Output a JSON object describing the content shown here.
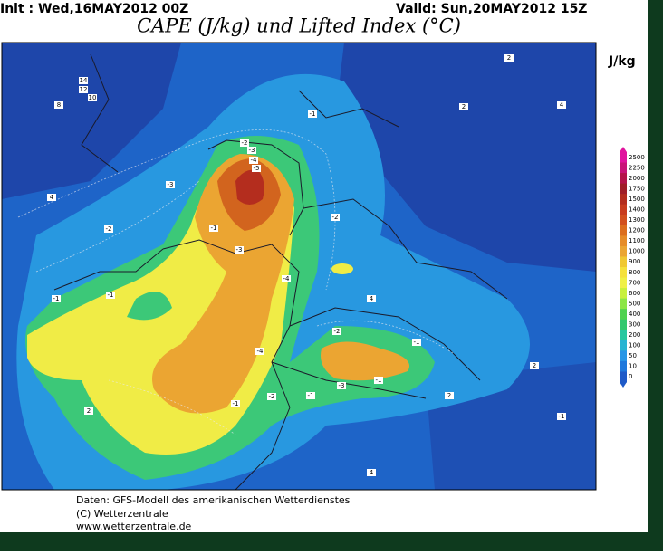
{
  "header": {
    "init": "Init : Wed,16MAY2012 00Z",
    "valid": "Valid: Sun,20MAY2012 15Z",
    "title": "CAPE (J/kg) und Lifted Index (°C)"
  },
  "legend": {
    "unit": "J/kg",
    "levels": [
      2500,
      2250,
      2000,
      1750,
      1500,
      1400,
      1300,
      1200,
      1100,
      1000,
      900,
      800,
      700,
      600,
      500,
      400,
      300,
      200,
      100,
      50,
      10,
      0
    ],
    "colors": [
      "#e0149e",
      "#c81478",
      "#b4144a",
      "#a01e28",
      "#b42d1e",
      "#c83c1e",
      "#d2501e",
      "#dc6e1e",
      "#e68c28",
      "#eba532",
      "#f0c832",
      "#f5e13c",
      "#f0f046",
      "#c8f03c",
      "#8ce646",
      "#50d250",
      "#32c86e",
      "#28c8a0",
      "#28b4d2",
      "#2896e6",
      "#1e78dc",
      "#1e5ac8"
    ]
  },
  "contour_labels": [
    "14",
    "12",
    "10",
    "8",
    "4",
    "2",
    "-1",
    "-2",
    "-3",
    "-4",
    "-5",
    "-3",
    "-2",
    "-1",
    "-3",
    "-1",
    "-4",
    "-2",
    "-1",
    "-4",
    "-2",
    "-1",
    "-1",
    "-3",
    "-1",
    "-2",
    "-1",
    "4",
    "2",
    "2",
    "4",
    "2",
    "-1",
    "4",
    "2"
  ],
  "footer": [
    "Daten: GFS-Modell des amerikanischen Wetterdienstes",
    "(C) Wetterzentrale",
    "www.wetterzentrale.de"
  ]
}
